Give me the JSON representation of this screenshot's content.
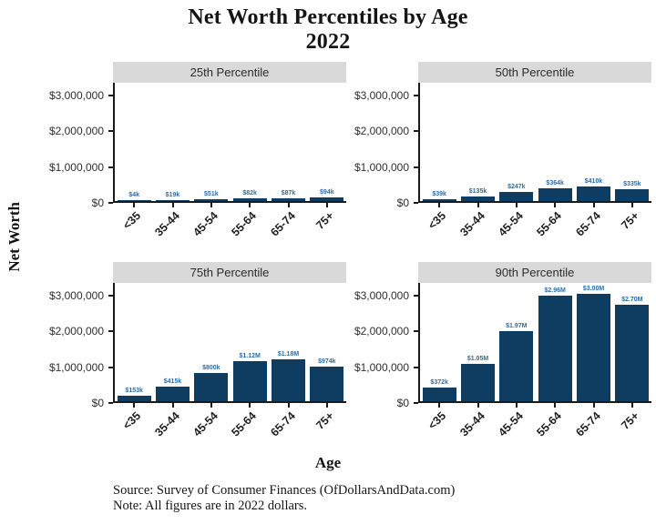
{
  "title": {
    "line1": "Net Worth Percentiles by Age",
    "line2": "2022"
  },
  "axes": {
    "y_label": "Net Worth",
    "x_label": "Age",
    "y_ticks": [
      "$3,000,000",
      "$2,000,000",
      "$1,000,000",
      "$0"
    ],
    "y_tick_values": [
      3000000,
      2000000,
      1000000,
      0
    ]
  },
  "footer": {
    "source": "Source:  Survey of Consumer Finances (OfDollarsAndData.com)",
    "note": "Note: All figures are in 2022 dollars."
  },
  "colors": {
    "bar": "#0f3d62",
    "bar_label": "#2e6ca5",
    "strip_bg": "#d9d9d9",
    "axis": "#1a1a1a"
  },
  "chart_data": {
    "type": "bar",
    "title": "Net Worth Percentiles by Age 2022",
    "xlabel": "Age",
    "ylabel": "Net Worth",
    "categories": [
      "<35",
      "35-44",
      "45-54",
      "55-64",
      "65-74",
      "75+"
    ],
    "ylim": [
      0,
      3200000
    ],
    "grid": false,
    "legend": "none",
    "y_tick_values": [
      0,
      1000000,
      2000000,
      3000000
    ],
    "panels": [
      {
        "label": "25th Percentile",
        "values": [
          4000,
          19000,
          51000,
          82000,
          87000,
          94000
        ],
        "value_labels": [
          "$4k",
          "$19k",
          "$51k",
          "$82k",
          "$87k",
          "$94k"
        ]
      },
      {
        "label": "50th Percentile",
        "values": [
          39000,
          135000,
          247000,
          364000,
          410000,
          335000
        ],
        "value_labels": [
          "$39k",
          "$135k",
          "$247k",
          "$364k",
          "$410k",
          "$335k"
        ]
      },
      {
        "label": "75th Percentile",
        "values": [
          153000,
          415000,
          800000,
          1120000,
          1180000,
          974000
        ],
        "value_labels": [
          "$153k",
          "$415k",
          "$800k",
          "$1.12M",
          "$1.18M",
          "$974k"
        ]
      },
      {
        "label": "90th Percentile",
        "values": [
          372000,
          1050000,
          1970000,
          2960000,
          3000000,
          2700000
        ],
        "value_labels": [
          "$372k",
          "$1.05M",
          "$1.97M",
          "$2.96M",
          "$3.00M",
          "$2.70M"
        ]
      }
    ],
    "source_note": "Source: Survey of Consumer Finances (OfDollarsAndData.com)",
    "note": "Note: All figures are in 2022 dollars."
  }
}
